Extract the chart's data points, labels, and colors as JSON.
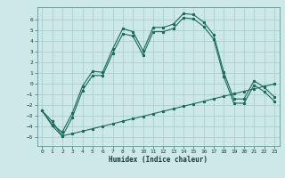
{
  "xlabel": "Humidex (Indice chaleur)",
  "background_color": "#cce8e8",
  "grid_color": "#aacece",
  "line_color": "#1a6b5a",
  "xlim": [
    -0.5,
    23.5
  ],
  "ylim": [
    -5.8,
    7.2
  ],
  "xticks": [
    0,
    1,
    2,
    3,
    4,
    5,
    6,
    7,
    8,
    9,
    10,
    11,
    12,
    13,
    14,
    15,
    16,
    17,
    18,
    19,
    20,
    21,
    22,
    23
  ],
  "yticks": [
    -5,
    -4,
    -3,
    -2,
    -1,
    0,
    1,
    2,
    3,
    4,
    5,
    6
  ],
  "curve1_x": [
    0,
    1,
    2,
    3,
    4,
    5,
    6,
    7,
    8,
    9,
    10,
    11,
    12,
    13,
    14,
    15,
    16,
    17,
    18,
    19,
    20,
    21,
    22,
    23
  ],
  "curve1_y": [
    -2.5,
    -3.8,
    -4.5,
    -2.7,
    -0.2,
    1.2,
    1.1,
    3.3,
    5.2,
    4.9,
    3.1,
    5.3,
    5.3,
    5.6,
    6.6,
    6.5,
    5.8,
    4.6,
    1.1,
    -1.4,
    -1.4,
    0.3,
    -0.3,
    -1.2
  ],
  "curve2_x": [
    0,
    1,
    2,
    3,
    4,
    5,
    6,
    7,
    8,
    9,
    10,
    11,
    12,
    13,
    14,
    15,
    16,
    17,
    18,
    19,
    20,
    21,
    22,
    23
  ],
  "curve2_y": [
    -2.5,
    -3.9,
    -4.9,
    -3.1,
    -0.6,
    0.8,
    0.8,
    2.9,
    4.7,
    4.5,
    2.7,
    4.9,
    4.9,
    5.2,
    6.2,
    6.1,
    5.4,
    4.2,
    0.7,
    -1.8,
    -1.8,
    -0.1,
    -0.7,
    -1.6
  ],
  "curve3_x": [
    0,
    1,
    2,
    3,
    4,
    5,
    6,
    7,
    8,
    9,
    10,
    11,
    12,
    13,
    14,
    15,
    16,
    17,
    18,
    19,
    20,
    21,
    22,
    23
  ],
  "curve3_y": [
    -2.5,
    -3.5,
    -4.85,
    -4.65,
    -4.42,
    -4.18,
    -3.95,
    -3.72,
    -3.48,
    -3.25,
    -3.02,
    -2.78,
    -2.55,
    -2.32,
    -2.08,
    -1.85,
    -1.62,
    -1.38,
    -1.15,
    -0.92,
    -0.68,
    -0.45,
    -0.22,
    0.0
  ]
}
